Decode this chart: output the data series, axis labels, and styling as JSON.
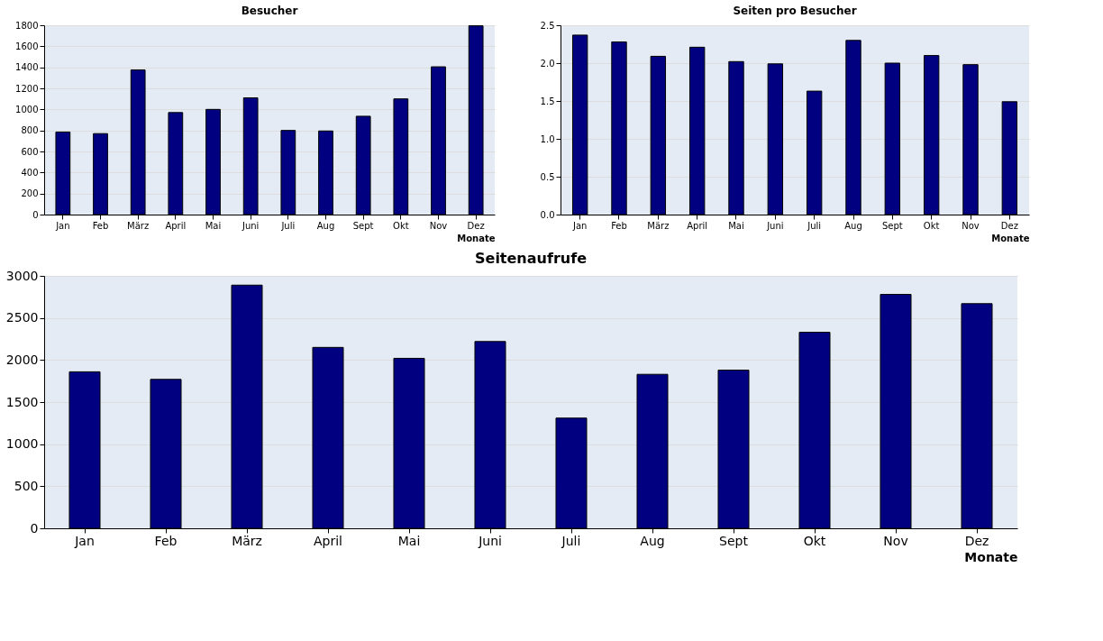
{
  "chart_data": [
    {
      "type": "bar",
      "title": "Besucher",
      "xlabel": "Monate",
      "categories": [
        "Jan",
        "Feb",
        "März",
        "April",
        "Mai",
        "Juni",
        "Juli",
        "Aug",
        "Sept",
        "Okt",
        "Nov",
        "Dez"
      ],
      "values": [
        785,
        770,
        1375,
        970,
        1000,
        1110,
        800,
        795,
        935,
        1100,
        1405,
        1795
      ],
      "color": "#000080",
      "ylim": [
        0,
        1800
      ],
      "yticks": [
        0,
        200,
        400,
        600,
        800,
        1000,
        1200,
        1400,
        1600,
        1800
      ],
      "grid": "y"
    },
    {
      "type": "bar",
      "title": "Seiten pro Besucher",
      "xlabel": "Monate",
      "categories": [
        "Jan",
        "Feb",
        "März",
        "April",
        "Mai",
        "Juni",
        "Juli",
        "Aug",
        "Sept",
        "Okt",
        "Nov",
        "Dez"
      ],
      "values": [
        2.37,
        2.28,
        2.09,
        2.21,
        2.02,
        1.99,
        1.63,
        2.3,
        2.0,
        2.1,
        1.98,
        1.49
      ],
      "color": "#000080",
      "ylim": [
        0,
        2.5
      ],
      "yticks": [
        {
          "value": 0,
          "label": "0.0"
        },
        0.5,
        {
          "value": 1,
          "label": "1.0"
        },
        1.5,
        {
          "value": 2,
          "label": "2.0"
        },
        2.5
      ],
      "grid": "y"
    },
    {
      "type": "bar",
      "title": "Seitenaufrufe",
      "xlabel": "Monate",
      "categories": [
        "Jan",
        "Feb",
        "März",
        "April",
        "Mai",
        "Juni",
        "Juli",
        "Aug",
        "Sept",
        "Okt",
        "Nov",
        "Dez"
      ],
      "values": [
        1860,
        1770,
        2890,
        2150,
        2020,
        2220,
        1310,
        1830,
        1880,
        2330,
        2780,
        2670
      ],
      "color": "#000080",
      "ylim": [
        0,
        3000
      ],
      "yticks": [
        0,
        500,
        1000,
        1500,
        2000,
        2500,
        3000
      ],
      "grid": "y"
    }
  ]
}
